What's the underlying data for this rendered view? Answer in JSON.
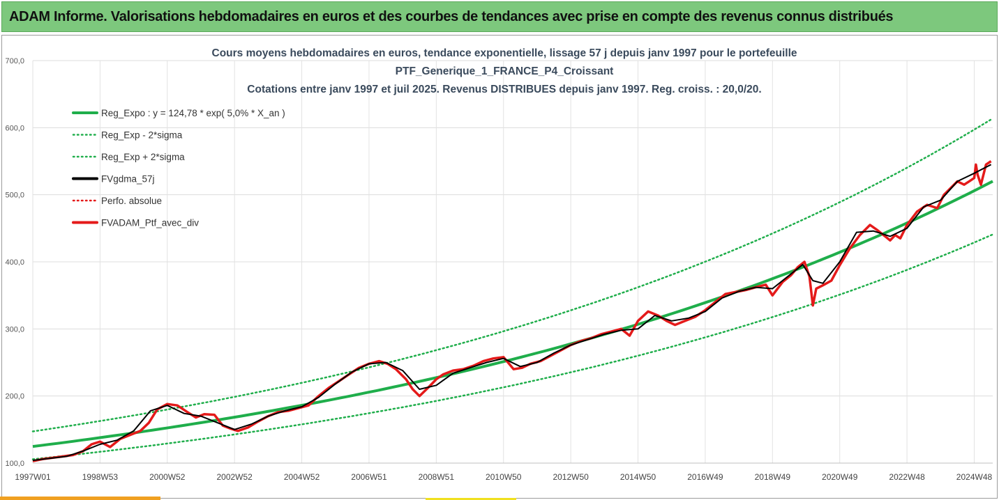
{
  "header": {
    "title": "ADAM Informe. Valorisations hebdomadaires en euros et des courbes de tendances avec prise en compte des revenus connus distribués"
  },
  "chart_data": {
    "type": "line",
    "title_lines": [
      "Cours moyens hebdomadaires  en euros, tendance exponentielle, lissage 57 j depuis janv 1997 pour le portefeuille",
      "PTF_Generique_1_FRANCE_P4_Croissant",
      "Cotations  entre janv 1997 et juil 2025. Revenus DISTRIBUES depuis janv 1997. Reg. croiss. : 20,0/20."
    ],
    "x_tick_labels": [
      "1997W01",
      "1998W53",
      "2000W52",
      "2002W52",
      "2004W52",
      "2006W51",
      "2008W51",
      "2010W50",
      "2012W50",
      "2014W50",
      "2016W49",
      "2018W49",
      "2020W49",
      "2022W48",
      "2024W48"
    ],
    "x_tick_years": [
      1997.0,
      1999.0,
      2001.0,
      2003.0,
      2005.0,
      2007.0,
      2009.0,
      2011.0,
      2013.0,
      2015.0,
      2017.0,
      2019.0,
      2021.0,
      2023.0,
      2025.0
    ],
    "xlim": [
      1997.0,
      2025.55
    ],
    "y_tick_labels": [
      "100,0",
      "200,0",
      "300,0",
      "400,0",
      "500,0",
      "600,0",
      "700,0"
    ],
    "ylim": [
      100,
      700
    ],
    "grid": true,
    "legend_position": "top-left",
    "regression": {
      "a": 124.78,
      "rate": 0.05,
      "sigma_factor": 1.18
    },
    "legend": [
      {
        "label": "Reg_Expo : y = 124,78 * exp( 5,0% *  X_an )",
        "color": "#1fae4b",
        "style": "solid"
      },
      {
        "label": "Reg_Exp - 2*sigma",
        "color": "#1fae4b",
        "style": "dotted"
      },
      {
        "label": "Reg_Exp + 2*sigma",
        "color": "#1fae4b",
        "style": "dotted"
      },
      {
        "label": "FVgdma_57j",
        "color": "#000000",
        "style": "solid"
      },
      {
        "label": "Perfo. absolue",
        "color": "#e41a1a",
        "style": "dotted"
      },
      {
        "label": "FVADAM_Ptf_avec_div",
        "color": "#e41a1a",
        "style": "solid"
      }
    ],
    "series": [
      {
        "name": "FVADAM_Ptf_avec_div",
        "x": [
          1997.0,
          1997.3,
          1997.6,
          1997.9,
          1998.2,
          1998.5,
          1998.75,
          1999.0,
          1999.3,
          1999.6,
          1999.9,
          2000.2,
          2000.45,
          2000.7,
          2001.0,
          2001.3,
          2001.6,
          2001.85,
          2002.1,
          2002.4,
          2002.65,
          2002.85,
          2003.1,
          2003.4,
          2003.7,
          2004.0,
          2004.3,
          2004.6,
          2004.9,
          2005.2,
          2005.5,
          2005.8,
          2006.1,
          2006.4,
          2006.7,
          2007.0,
          2007.3,
          2007.55,
          2007.8,
          2008.1,
          2008.3,
          2008.5,
          2008.75,
          2009.0,
          2009.2,
          2009.5,
          2009.8,
          2010.1,
          2010.4,
          2010.7,
          2011.0,
          2011.3,
          2011.55,
          2011.8,
          2012.1,
          2012.4,
          2012.7,
          2013.0,
          2013.3,
          2013.6,
          2013.9,
          2014.2,
          2014.5,
          2014.75,
          2015.0,
          2015.3,
          2015.6,
          2015.85,
          2016.1,
          2016.4,
          2016.7,
          2017.0,
          2017.3,
          2017.6,
          2017.9,
          2018.2,
          2018.5,
          2018.8,
          2019.0,
          2019.3,
          2019.55,
          2019.75,
          2019.95,
          2020.1,
          2020.2,
          2020.3,
          2020.5,
          2020.75,
          2021.0,
          2021.3,
          2021.6,
          2021.9,
          2022.1,
          2022.3,
          2022.5,
          2022.65,
          2022.8,
          2023.0,
          2023.3,
          2023.6,
          2023.9,
          2024.1,
          2024.3,
          2024.5,
          2024.7,
          2024.85,
          2025.0,
          2025.05,
          2025.1,
          2025.2,
          2025.35,
          2025.5
        ],
        "values": [
          103,
          106,
          108,
          110,
          112,
          118,
          128,
          132,
          124,
          136,
          142,
          148,
          160,
          180,
          188,
          186,
          176,
          168,
          173,
          172,
          156,
          152,
          148,
          153,
          162,
          170,
          176,
          178,
          182,
          186,
          200,
          212,
          222,
          232,
          242,
          248,
          252,
          248,
          240,
          225,
          210,
          200,
          212,
          225,
          232,
          238,
          240,
          245,
          252,
          256,
          258,
          240,
          242,
          248,
          252,
          260,
          268,
          276,
          282,
          286,
          292,
          296,
          300,
          290,
          312,
          326,
          320,
          312,
          306,
          312,
          318,
          328,
          340,
          352,
          355,
          358,
          362,
          366,
          350,
          370,
          380,
          392,
          400,
          378,
          335,
          360,
          365,
          372,
          395,
          420,
          440,
          455,
          448,
          440,
          432,
          440,
          435,
          455,
          475,
          485,
          480,
          500,
          510,
          520,
          515,
          520,
          525,
          545,
          530,
          515,
          545,
          550
        ]
      },
      {
        "name": "FVgdma_57j",
        "x": [
          1997.0,
          1997.5,
          1998.0,
          1998.5,
          1999.0,
          1999.5,
          2000.0,
          2000.5,
          2001.0,
          2001.5,
          2002.0,
          2002.5,
          2003.0,
          2003.5,
          2004.0,
          2004.5,
          2005.0,
          2005.5,
          2006.0,
          2006.5,
          2007.0,
          2007.5,
          2008.0,
          2008.5,
          2009.0,
          2009.5,
          2010.0,
          2010.5,
          2011.0,
          2011.5,
          2012.0,
          2012.5,
          2013.0,
          2013.5,
          2014.0,
          2014.5,
          2015.0,
          2015.5,
          2016.0,
          2016.5,
          2017.0,
          2017.5,
          2018.0,
          2018.5,
          2019.0,
          2019.5,
          2019.9,
          2020.2,
          2020.5,
          2021.0,
          2021.5,
          2022.0,
          2022.5,
          2023.0,
          2023.5,
          2024.0,
          2024.5,
          2025.0,
          2025.5
        ],
        "values": [
          104,
          107,
          110,
          118,
          128,
          134,
          148,
          178,
          186,
          174,
          170,
          160,
          150,
          158,
          170,
          178,
          184,
          198,
          218,
          236,
          248,
          250,
          238,
          210,
          216,
          234,
          242,
          250,
          256,
          244,
          250,
          264,
          276,
          284,
          292,
          298,
          300,
          320,
          312,
          316,
          326,
          346,
          356,
          362,
          360,
          380,
          396,
          372,
          368,
          400,
          444,
          446,
          438,
          450,
          482,
          492,
          520,
          532,
          545
        ]
      }
    ]
  }
}
